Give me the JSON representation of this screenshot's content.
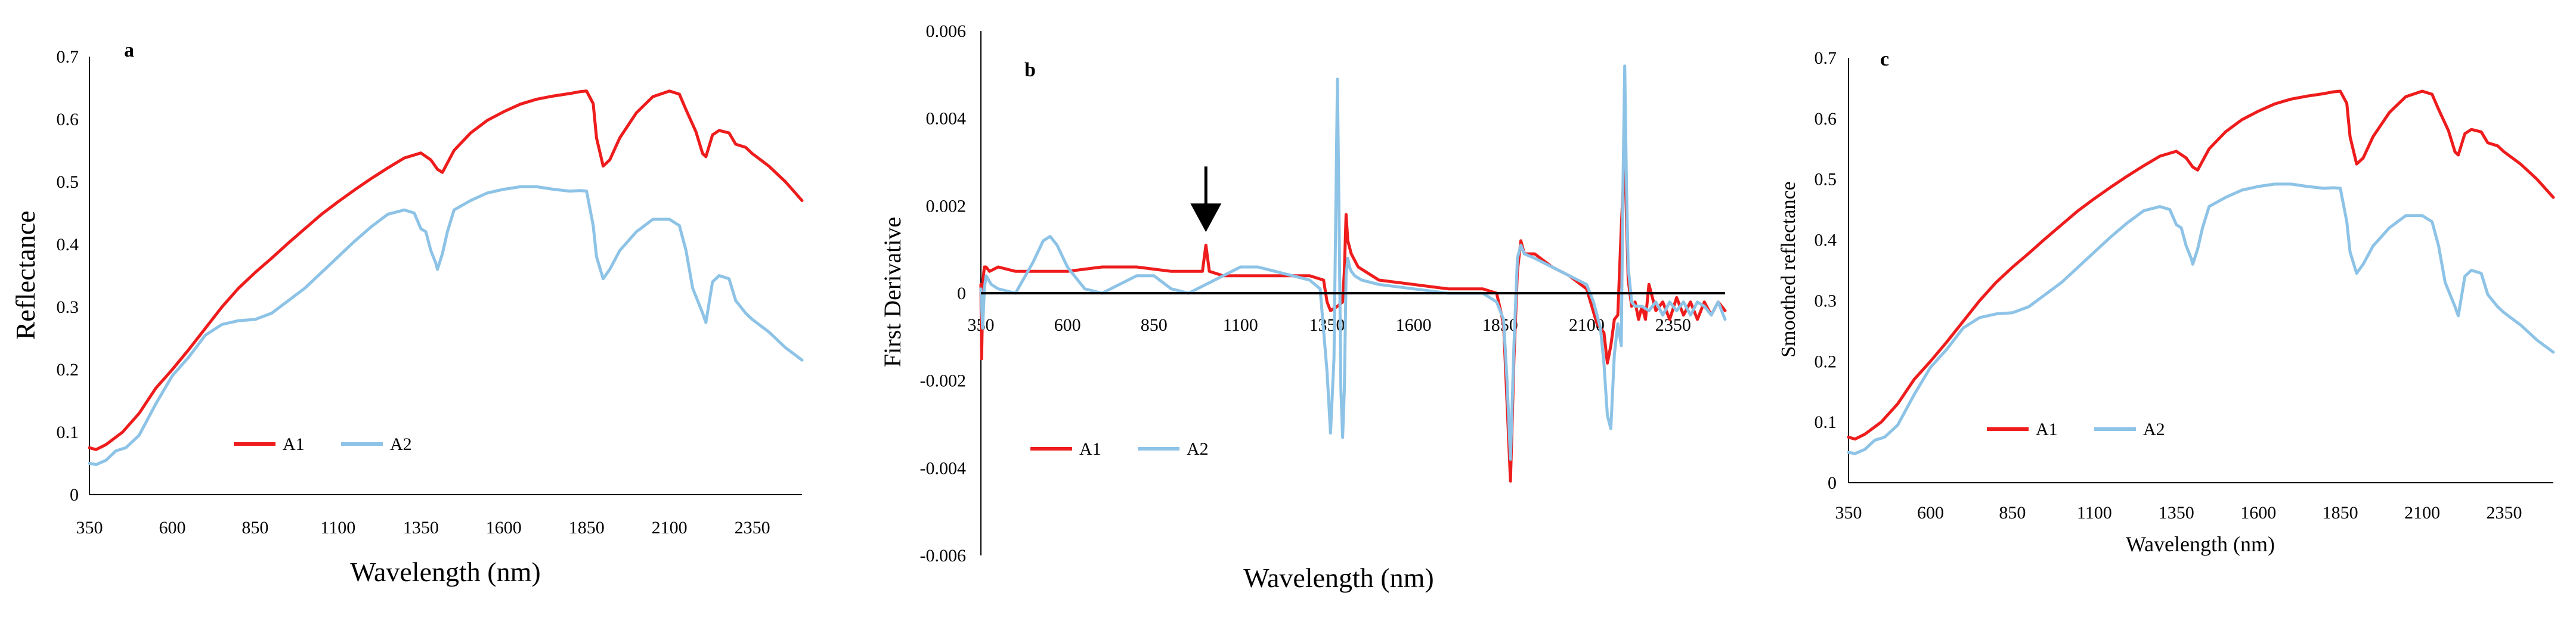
{
  "colors": {
    "A1": "#ee1c1c",
    "A2": "#8dc3e6",
    "axis": "#000000",
    "arrow": "#000000"
  },
  "chart_data": [
    {
      "panel": "a",
      "type": "line",
      "title": "",
      "xlabel": "Wavelength (nm)",
      "ylabel": "Reflectance",
      "xlim": [
        350,
        2500
      ],
      "ylim": [
        0,
        0.7
      ],
      "xticks": [
        350,
        600,
        850,
        1100,
        1350,
        1600,
        1850,
        2100,
        2350
      ],
      "xtick_labels": [
        "350",
        "600",
        "850",
        "1100",
        "1350",
        "1600",
        "1850",
        "2100",
        "2350"
      ],
      "yticks": [
        0,
        0.1,
        0.2,
        0.3,
        0.4,
        0.5,
        0.6,
        0.7
      ],
      "ytick_labels": [
        "0",
        "0.1",
        "0.2",
        "0.3",
        "0.4",
        "0.5",
        "0.6",
        "0.7"
      ],
      "legend": "bottom-left",
      "series": [
        {
          "name": "A1",
          "x": [
            350,
            370,
            400,
            450,
            500,
            550,
            600,
            650,
            700,
            750,
            800,
            850,
            900,
            950,
            1000,
            1050,
            1100,
            1150,
            1200,
            1250,
            1300,
            1350,
            1380,
            1400,
            1415,
            1430,
            1450,
            1500,
            1550,
            1600,
            1650,
            1700,
            1750,
            1800,
            1830,
            1850,
            1870,
            1880,
            1900,
            1920,
            1950,
            2000,
            2050,
            2100,
            2130,
            2150,
            2180,
            2200,
            2210,
            2230,
            2250,
            2280,
            2300,
            2330,
            2350,
            2400,
            2450,
            2500
          ],
          "y": [
            0.075,
            0.072,
            0.08,
            0.1,
            0.13,
            0.17,
            0.2,
            0.232,
            0.266,
            0.3,
            0.33,
            0.355,
            0.378,
            0.402,
            0.425,
            0.448,
            0.468,
            0.487,
            0.505,
            0.522,
            0.538,
            0.546,
            0.535,
            0.52,
            0.515,
            0.53,
            0.55,
            0.578,
            0.598,
            0.612,
            0.624,
            0.632,
            0.637,
            0.641,
            0.644,
            0.645,
            0.625,
            0.57,
            0.525,
            0.535,
            0.57,
            0.61,
            0.636,
            0.645,
            0.64,
            0.615,
            0.58,
            0.545,
            0.54,
            0.575,
            0.582,
            0.578,
            0.56,
            0.555,
            0.545,
            0.525,
            0.5,
            0.47
          ]
        },
        {
          "name": "A2",
          "x": [
            350,
            370,
            400,
            430,
            460,
            500,
            550,
            600,
            650,
            700,
            750,
            800,
            850,
            900,
            950,
            1000,
            1050,
            1100,
            1150,
            1200,
            1250,
            1300,
            1330,
            1350,
            1365,
            1380,
            1395,
            1400,
            1415,
            1430,
            1450,
            1500,
            1550,
            1600,
            1650,
            1700,
            1750,
            1800,
            1830,
            1850,
            1870,
            1880,
            1900,
            1920,
            1950,
            2000,
            2050,
            2100,
            2130,
            2150,
            2170,
            2200,
            2210,
            2230,
            2250,
            2280,
            2300,
            2330,
            2350,
            2400,
            2450,
            2500
          ],
          "y": [
            0.05,
            0.048,
            0.055,
            0.07,
            0.075,
            0.095,
            0.145,
            0.19,
            0.22,
            0.255,
            0.272,
            0.278,
            0.28,
            0.29,
            0.31,
            0.33,
            0.355,
            0.38,
            0.405,
            0.428,
            0.448,
            0.455,
            0.45,
            0.425,
            0.42,
            0.39,
            0.37,
            0.36,
            0.385,
            0.42,
            0.455,
            0.47,
            0.482,
            0.488,
            0.492,
            0.492,
            0.488,
            0.485,
            0.486,
            0.485,
            0.43,
            0.38,
            0.345,
            0.36,
            0.39,
            0.42,
            0.44,
            0.44,
            0.43,
            0.39,
            0.33,
            0.29,
            0.275,
            0.34,
            0.35,
            0.345,
            0.31,
            0.29,
            0.28,
            0.26,
            0.235,
            0.215
          ]
        }
      ]
    },
    {
      "panel": "b",
      "type": "line",
      "title": "",
      "xlabel": "Wavelength (nm)",
      "ylabel": "First Derivative",
      "xlim": [
        350,
        2500
      ],
      "ylim": [
        -0.006,
        0.006
      ],
      "xticks": [
        350,
        600,
        850,
        1100,
        1350,
        1600,
        1850,
        2100,
        2350
      ],
      "xtick_labels": [
        "350",
        "600",
        "850",
        "1100",
        "1350",
        "1600",
        "1850",
        "2100",
        "2350"
      ],
      "yticks": [
        -0.006,
        -0.004,
        -0.002,
        0,
        0.002,
        0.004,
        0.006
      ],
      "ytick_labels": [
        "-0.006",
        "-0.004",
        "-0.002",
        "0",
        "0.002",
        "0.004",
        "0.006"
      ],
      "legend": "bottom-left",
      "annotation": {
        "type": "arrow",
        "x": 1000,
        "y_from": 0.0029,
        "y_to": 0.0014
      },
      "series": [
        {
          "name": "A1",
          "x": [
            350,
            352,
            356,
            360,
            365,
            375,
            400,
            450,
            500,
            550,
            600,
            700,
            800,
            900,
            950,
            990,
            1000,
            1010,
            1050,
            1100,
            1200,
            1300,
            1340,
            1350,
            1360,
            1380,
            1395,
            1400,
            1405,
            1410,
            1420,
            1440,
            1500,
            1600,
            1700,
            1800,
            1840,
            1860,
            1870,
            1880,
            1890,
            1900,
            1910,
            1920,
            1950,
            2000,
            2050,
            2100,
            2130,
            2150,
            2160,
            2170,
            2180,
            2190,
            2200,
            2210,
            2220,
            2230,
            2240,
            2250,
            2260,
            2270,
            2280,
            2300,
            2320,
            2340,
            2360,
            2380,
            2400,
            2420,
            2440,
            2460,
            2480,
            2500
          ],
          "y": [
            0.0002,
            -0.0015,
            0.0003,
            0.0006,
            0.0006,
            0.0005,
            0.0006,
            0.0005,
            0.0005,
            0.0005,
            0.0005,
            0.0006,
            0.0006,
            0.0005,
            0.0005,
            0.0005,
            0.0011,
            0.0005,
            0.0004,
            0.0004,
            0.0004,
            0.0004,
            0.0003,
            -0.0002,
            -0.0004,
            -0.0003,
            -0.0002,
            0.0005,
            0.0018,
            0.0012,
            0.0009,
            0.0006,
            0.0003,
            0.0002,
            0.0001,
            0.0001,
            0.0,
            -0.0007,
            -0.0025,
            -0.0043,
            -0.0015,
            0.0005,
            0.0012,
            0.0009,
            0.0009,
            0.0006,
            0.0004,
            0.0001,
            -0.0007,
            -0.0009,
            -0.0016,
            -0.0012,
            -0.0006,
            -0.0005,
            0.0015,
            0.0032,
            0.0003,
            -0.0003,
            -0.0002,
            -0.0006,
            -0.0003,
            -0.0006,
            0.0002,
            -0.0004,
            -0.0002,
            -0.0006,
            -0.0001,
            -0.0005,
            -0.0002,
            -0.0006,
            -0.0002,
            -0.0005,
            -0.0002,
            -0.0004
          ]
        },
        {
          "name": "A2",
          "x": [
            350,
            355,
            360,
            365,
            380,
            400,
            450,
            500,
            530,
            550,
            570,
            600,
            650,
            700,
            750,
            800,
            850,
            900,
            950,
            1000,
            1050,
            1100,
            1150,
            1200,
            1250,
            1300,
            1330,
            1350,
            1360,
            1370,
            1380,
            1385,
            1390,
            1395,
            1400,
            1405,
            1410,
            1415,
            1420,
            1430,
            1450,
            1500,
            1600,
            1700,
            1800,
            1840,
            1860,
            1870,
            1880,
            1890,
            1900,
            1910,
            1920,
            1950,
            2000,
            2050,
            2100,
            2120,
            2140,
            2150,
            2160,
            2170,
            2180,
            2190,
            2200,
            2205,
            2210,
            2215,
            2220,
            2230,
            2240,
            2260,
            2280,
            2300,
            2320,
            2340,
            2360,
            2380,
            2400,
            2420,
            2440,
            2460,
            2480,
            2500
          ],
          "y": [
            0.0001,
            -0.0008,
            0.0001,
            0.0004,
            0.0002,
            0.0001,
            0.0,
            0.0007,
            0.0012,
            0.0013,
            0.0011,
            0.0006,
            0.0001,
            0.0,
            0.0002,
            0.0004,
            0.0004,
            0.0001,
            0.0,
            0.0002,
            0.0004,
            0.0006,
            0.0006,
            0.0005,
            0.0004,
            0.0003,
            0.0001,
            -0.0018,
            -0.0032,
            -0.0015,
            0.0049,
            0.0015,
            -0.0022,
            -0.0033,
            -0.0022,
            0.0004,
            0.0008,
            0.0006,
            0.0005,
            0.0004,
            0.0003,
            0.0002,
            0.0001,
            0.0,
            0.0,
            -0.0002,
            -0.0006,
            -0.002,
            -0.0038,
            -0.0012,
            0.0008,
            0.0011,
            0.0009,
            0.0008,
            0.0006,
            0.0004,
            0.0002,
            -0.0002,
            -0.0008,
            -0.0016,
            -0.0028,
            -0.0031,
            -0.0014,
            -0.0007,
            -0.0012,
            0.0025,
            0.0052,
            0.0025,
            0.0006,
            -0.0002,
            -0.0003,
            -0.0003,
            -0.0004,
            -0.0002,
            -0.0005,
            -0.0002,
            -0.0004,
            -0.0002,
            -0.0005,
            -0.0002,
            -0.0003,
            -0.0005,
            -0.0002,
            -0.0006
          ]
        }
      ]
    },
    {
      "panel": "c",
      "type": "line",
      "title": "",
      "xlabel": "Wavelength (nm)",
      "ylabel": "Smoothed reflectance",
      "xlim": [
        350,
        2500
      ],
      "ylim": [
        0,
        0.7
      ],
      "xticks": [
        350,
        600,
        850,
        1100,
        1350,
        1600,
        1850,
        2100,
        2350
      ],
      "xtick_labels": [
        "350",
        "600",
        "850",
        "1100",
        "1350",
        "1600",
        "1850",
        "2100",
        "2350"
      ],
      "yticks": [
        0,
        0.1,
        0.2,
        0.3,
        0.4,
        0.5,
        0.6,
        0.7
      ],
      "ytick_labels": [
        "0",
        "0.1",
        "0.2",
        "0.3",
        "0.4",
        "0.5",
        "0.6",
        "0.7"
      ],
      "legend": "bottom-left",
      "series": [
        {
          "name": "A1",
          "x": [
            350,
            370,
            400,
            450,
            500,
            550,
            600,
            650,
            700,
            750,
            800,
            850,
            900,
            950,
            1000,
            1050,
            1100,
            1150,
            1200,
            1250,
            1300,
            1350,
            1380,
            1400,
            1415,
            1430,
            1450,
            1500,
            1550,
            1600,
            1650,
            1700,
            1750,
            1800,
            1830,
            1850,
            1870,
            1880,
            1900,
            1920,
            1950,
            2000,
            2050,
            2100,
            2130,
            2150,
            2180,
            2200,
            2210,
            2230,
            2250,
            2280,
            2300,
            2330,
            2350,
            2400,
            2450,
            2500
          ],
          "y": [
            0.075,
            0.072,
            0.08,
            0.1,
            0.13,
            0.17,
            0.2,
            0.232,
            0.266,
            0.3,
            0.33,
            0.355,
            0.378,
            0.402,
            0.425,
            0.448,
            0.468,
            0.487,
            0.505,
            0.522,
            0.538,
            0.546,
            0.535,
            0.52,
            0.515,
            0.53,
            0.55,
            0.578,
            0.598,
            0.612,
            0.624,
            0.632,
            0.637,
            0.641,
            0.644,
            0.645,
            0.625,
            0.57,
            0.525,
            0.535,
            0.57,
            0.61,
            0.636,
            0.645,
            0.64,
            0.615,
            0.58,
            0.545,
            0.54,
            0.575,
            0.582,
            0.578,
            0.56,
            0.555,
            0.545,
            0.525,
            0.5,
            0.47
          ]
        },
        {
          "name": "A2",
          "x": [
            350,
            370,
            400,
            430,
            460,
            500,
            550,
            600,
            650,
            700,
            750,
            800,
            850,
            900,
            950,
            1000,
            1050,
            1100,
            1150,
            1200,
            1250,
            1300,
            1330,
            1350,
            1365,
            1380,
            1395,
            1400,
            1415,
            1430,
            1450,
            1500,
            1550,
            1600,
            1650,
            1700,
            1750,
            1800,
            1830,
            1850,
            1870,
            1880,
            1900,
            1920,
            1950,
            2000,
            2050,
            2100,
            2130,
            2150,
            2170,
            2200,
            2210,
            2230,
            2250,
            2280,
            2300,
            2330,
            2350,
            2400,
            2450,
            2500
          ],
          "y": [
            0.05,
            0.048,
            0.055,
            0.07,
            0.075,
            0.095,
            0.145,
            0.19,
            0.22,
            0.255,
            0.272,
            0.278,
            0.28,
            0.29,
            0.31,
            0.33,
            0.355,
            0.38,
            0.405,
            0.428,
            0.448,
            0.455,
            0.45,
            0.425,
            0.42,
            0.39,
            0.37,
            0.36,
            0.385,
            0.42,
            0.455,
            0.47,
            0.482,
            0.488,
            0.492,
            0.492,
            0.488,
            0.485,
            0.486,
            0.485,
            0.43,
            0.38,
            0.345,
            0.36,
            0.39,
            0.42,
            0.44,
            0.44,
            0.43,
            0.39,
            0.33,
            0.29,
            0.275,
            0.34,
            0.35,
            0.345,
            0.31,
            0.29,
            0.28,
            0.26,
            0.235,
            0.215
          ]
        }
      ]
    }
  ]
}
